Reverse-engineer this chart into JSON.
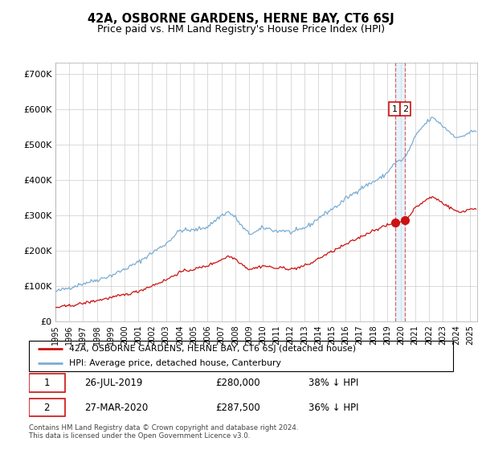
{
  "title": "42A, OSBORNE GARDENS, HERNE BAY, CT6 6SJ",
  "subtitle": "Price paid vs. HM Land Registry's House Price Index (HPI)",
  "footer": "Contains HM Land Registry data © Crown copyright and database right 2024.\nThis data is licensed under the Open Government Licence v3.0.",
  "legend_house": "42A, OSBORNE GARDENS, HERNE BAY, CT6 6SJ (detached house)",
  "legend_hpi": "HPI: Average price, detached house, Canterbury",
  "annotation1_date": "26-JUL-2019",
  "annotation1_price": "£280,000",
  "annotation1_pct": "38% ↓ HPI",
  "annotation2_date": "27-MAR-2020",
  "annotation2_price": "£287,500",
  "annotation2_pct": "36% ↓ HPI",
  "hpi_color": "#7aadd4",
  "house_color": "#cc1111",
  "ann_line_color": "#dd6666",
  "ann_box_color": "#cc1111",
  "ylim": [
    0,
    730000
  ],
  "yticks": [
    0,
    100000,
    200000,
    300000,
    400000,
    500000,
    600000,
    700000
  ],
  "ytick_labels": [
    "£0",
    "£100K",
    "£200K",
    "£300K",
    "£400K",
    "£500K",
    "£600K",
    "£700K"
  ],
  "ann1_x": 2019.58,
  "ann1_y": 280000,
  "ann2_x": 2020.25,
  "ann2_y": 287500,
  "xmin": 1995,
  "xmax": 2025.5
}
